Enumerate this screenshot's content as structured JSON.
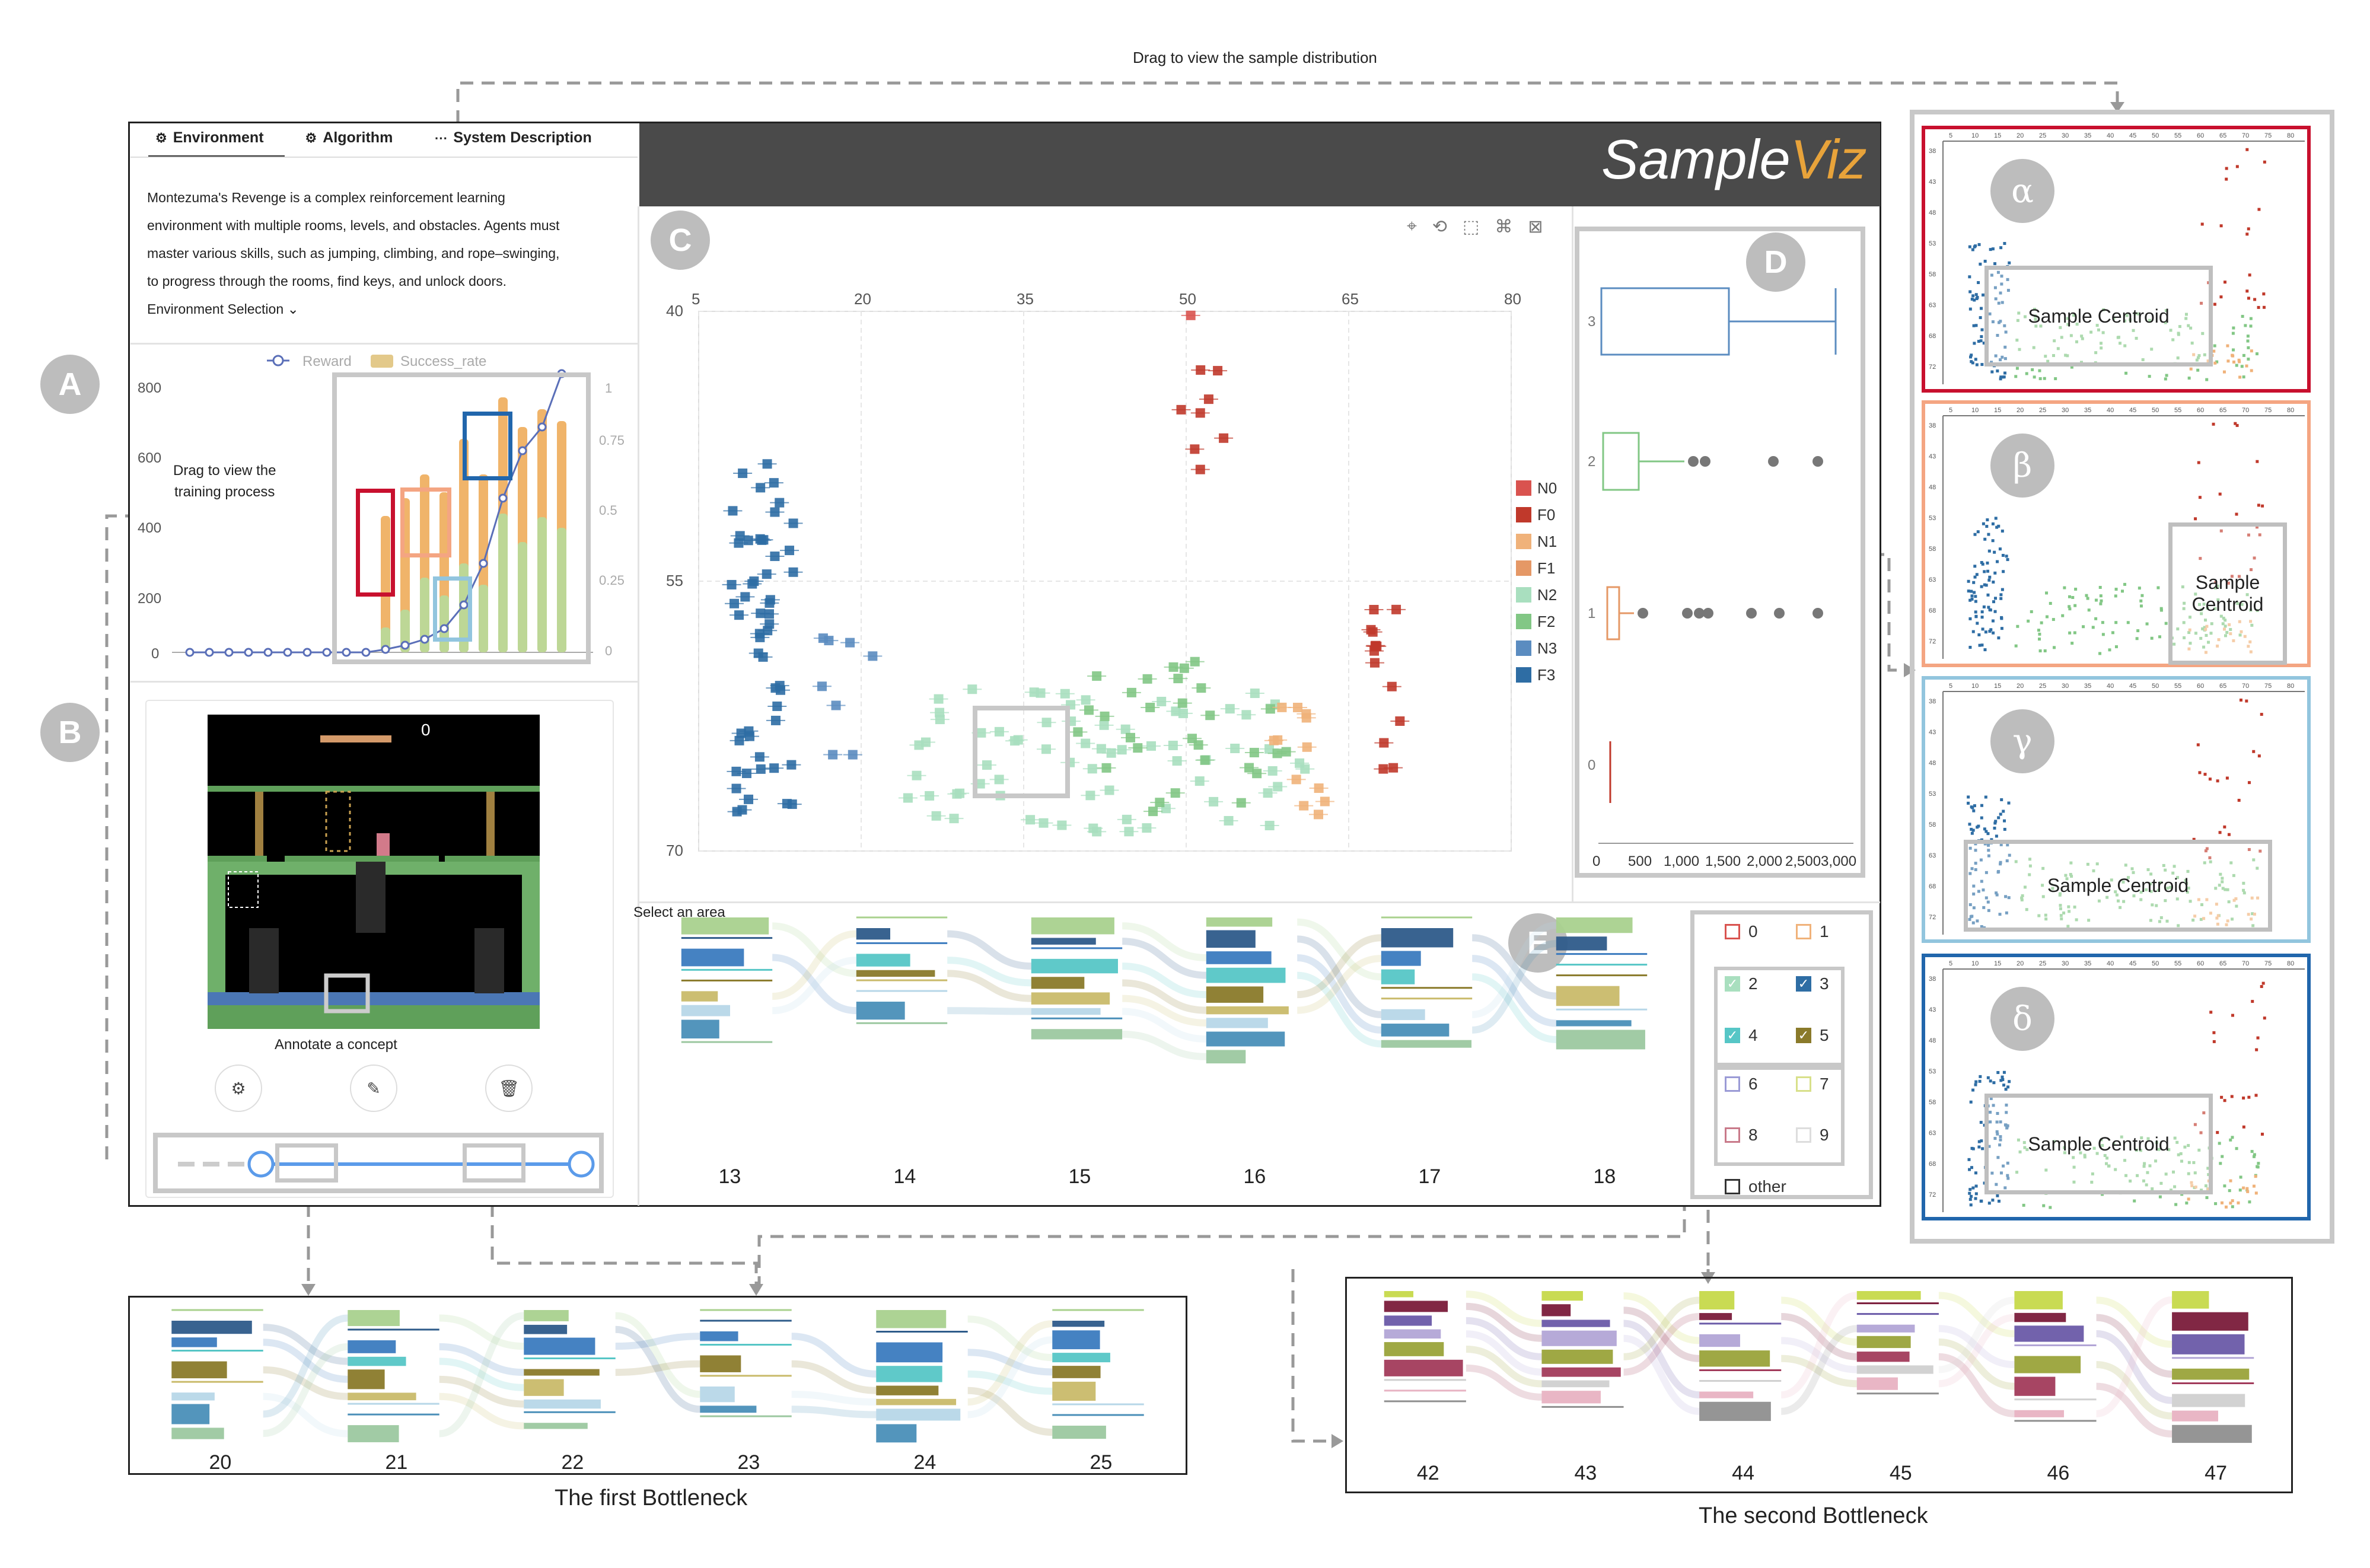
{
  "annotations": {
    "drag_distribution": "Drag to view the sample distribution",
    "drag_training": [
      "Drag to view  the",
      "training process"
    ],
    "annotate_concept": "Annotate a concept",
    "select_area": "Select an area",
    "first_bottleneck": "The first Bottleneck",
    "second_bottleneck": "The second Bottleneck"
  },
  "labels": {
    "A": "A",
    "B": "B",
    "C": "C",
    "D": "D",
    "E": "E"
  },
  "tabs": [
    {
      "label": "Environment",
      "icon": "gear-icon"
    },
    {
      "label": "Algorithm",
      "icon": "gear-icon"
    },
    {
      "label": "System Description",
      "icon": "ellipsis-icon"
    }
  ],
  "description": [
    "Montezuma's Revenge is a complex reinforcement learning",
    "environment with multiple rooms, levels, and obstacles. Agents must",
    "master various skills, such as jumping, climbing, and rope–swinging,",
    "to progress through the rooms, find keys, and unlock doors."
  ],
  "env_selection": "Environment Selection",
  "app_title": {
    "part1": "Sample",
    "part2": "Viz"
  },
  "colors": {
    "accent": "#e8a33a",
    "header_bg": "#4a4a4a",
    "blue_line": "#5a6fb8"
  },
  "training_chart": {
    "legend": [
      "Reward",
      "Success_rate"
    ],
    "y_left_ticks": [
      "800",
      "600",
      "400",
      "200",
      "0"
    ],
    "y_right_ticks": [
      "1",
      "0.75",
      "0.5",
      "0.25",
      "0"
    ]
  },
  "scatter": {
    "x_ticks": [
      "5",
      "20",
      "35",
      "50",
      "65",
      "80"
    ],
    "y_ticks": [
      "40",
      "55",
      "70"
    ],
    "legend": [
      "N0",
      "F0",
      "N1",
      "F1",
      "N2",
      "F2",
      "N3",
      "F3"
    ],
    "legend_colors": [
      "#d9534f",
      "#c0392b",
      "#f0b27a",
      "#e59866",
      "#a9dfbf",
      "#82c785",
      "#5b8cc0",
      "#2e6da4"
    ]
  },
  "boxplot": {
    "y_ticks": [
      "3",
      "2",
      "1",
      "0"
    ],
    "x_ticks": [
      "0",
      "500",
      "1,000",
      "1,500",
      "2,000",
      "2,500",
      "3,000"
    ]
  },
  "sankey_main": {
    "steps": [
      "13",
      "14",
      "15",
      "16",
      "17",
      "18"
    ]
  },
  "cluster_legend": [
    "0",
    "1",
    "2",
    "3",
    "4",
    "5",
    "6",
    "7",
    "8",
    "9",
    "other"
  ],
  "bottleneck1": {
    "steps": [
      "20",
      "21",
      "22",
      "23",
      "24",
      "25"
    ]
  },
  "bottleneck2": {
    "steps": [
      "42",
      "43",
      "44",
      "45",
      "46",
      "47"
    ]
  },
  "mini_panels": [
    {
      "greek": "α",
      "centroid": "Sample Centroid",
      "color": "#c8102e"
    },
    {
      "greek": "β",
      "centroid": "Sample Centroid",
      "color": "#f4a582"
    },
    {
      "greek": "γ",
      "centroid": "Sample Centroid",
      "color": "#92c5de"
    },
    {
      "greek": "δ",
      "centroid": "Sample Centroid",
      "color": "#2166ac"
    }
  ],
  "mini_ticks_x": [
    "5",
    "10",
    "15",
    "20",
    "25",
    "30",
    "35",
    "40",
    "45",
    "50",
    "55",
    "60",
    "65",
    "70",
    "75",
    "80"
  ],
  "mini_ticks_y": [
    "38",
    "43",
    "48",
    "53",
    "58",
    "63",
    "68",
    "72"
  ],
  "game_score": "0"
}
